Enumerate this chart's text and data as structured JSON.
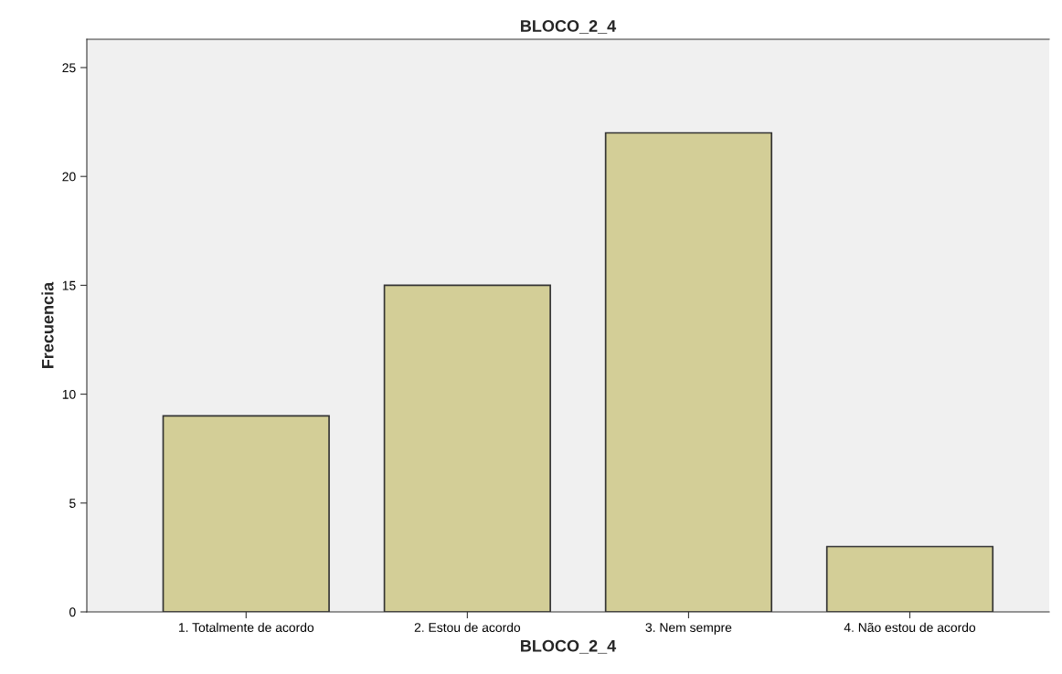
{
  "chart_data": {
    "type": "bar",
    "title": "BLOCO_2_4",
    "xlabel": "BLOCO_2_4",
    "ylabel": "Frecuencia",
    "categories": [
      "1. Totalmente de acordo",
      "2. Estou de acordo",
      "3. Nem sempre",
      "4. Não estou de acordo"
    ],
    "values": [
      9,
      15,
      22,
      3
    ],
    "color": "#d3ce97",
    "ylim": [
      0,
      26.3
    ],
    "yticks": [
      0,
      5,
      10,
      15,
      20,
      25
    ],
    "grid": false
  }
}
